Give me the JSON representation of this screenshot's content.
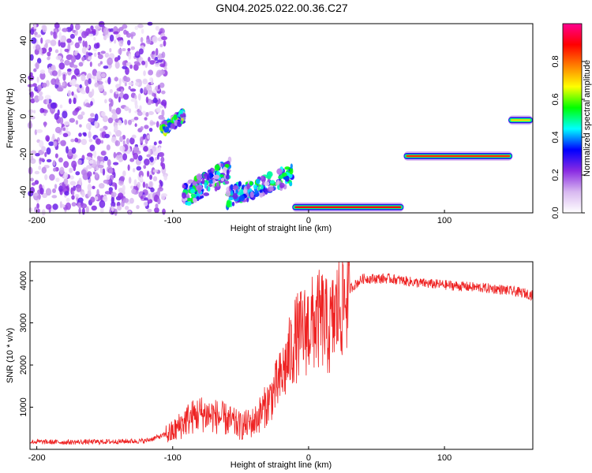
{
  "title": "GN04.2025.022.00.36.C27",
  "chart_data": [
    {
      "type": "heatmap",
      "xlabel": "Height of straight line (km)",
      "ylabel": "Frequency (Hz)",
      "xlim": [
        -205,
        165
      ],
      "ylim": [
        -51,
        49
      ],
      "xticks": [
        -200,
        -100,
        0,
        100
      ],
      "yticks": [
        -40,
        -20,
        0,
        20,
        40
      ],
      "colorbar": {
        "label": "Normalized spectral amplitude",
        "range": [
          0,
          1
        ],
        "ticks": [
          "0.0",
          "0.2",
          "0.4",
          "0.6",
          "0.8"
        ],
        "colors": [
          "#ffffff",
          "#d8b8f0",
          "#8a2be2",
          "#0000ff",
          "#00ffff",
          "#00ff00",
          "#ffff00",
          "#ff7f00",
          "#ff0000",
          "#ff0090"
        ]
      },
      "features": [
        {
          "kind": "diffuse scatter",
          "x_range": [
            -205,
            -105
          ],
          "y_range": [
            -51,
            49
          ],
          "amplitude": 0.1
        },
        {
          "kind": "cluster",
          "x_range": [
            -108,
            -92
          ],
          "y_range": [
            -10,
            2
          ],
          "amplitude": 0.35
        },
        {
          "kind": "cluster",
          "x_range": [
            -92,
            -58
          ],
          "y_range": [
            -48,
            -25
          ],
          "amplitude": 0.3
        },
        {
          "kind": "cluster",
          "x_range": [
            -60,
            -12
          ],
          "y_range": [
            -48,
            -28
          ],
          "amplitude": 0.3
        },
        {
          "kind": "band",
          "x_range": [
            -12,
            70
          ],
          "y": -48,
          "amplitude": 0.7
        },
        {
          "kind": "band",
          "x_range": [
            70,
            150
          ],
          "y": -21,
          "amplitude": 0.65
        },
        {
          "kind": "band",
          "x_range": [
            147,
            165
          ],
          "y": -2,
          "amplitude": 0.5
        }
      ]
    },
    {
      "type": "line",
      "xlabel": "Height of straight line (km)",
      "ylabel": "SNR (10 * v/v)",
      "xlim": [
        -205,
        165
      ],
      "ylim": [
        0,
        4450
      ],
      "xticks": [
        -200,
        -100,
        0,
        100
      ],
      "yticks": [
        1000,
        2000,
        3000,
        4000
      ],
      "color": "#ee2222",
      "series": [
        {
          "x": [
            -205,
            -180,
            -150,
            -120,
            -100,
            -90,
            -80,
            -70,
            -60,
            -50,
            -40,
            -30,
            -20,
            -10,
            0,
            5,
            10,
            15,
            20,
            25,
            30,
            40,
            60,
            80,
            100,
            120,
            140,
            160,
            165
          ],
          "values": [
            180,
            170,
            180,
            200,
            400,
            700,
            850,
            800,
            700,
            550,
            650,
            1100,
            1700,
            2600,
            2900,
            3000,
            3100,
            2800,
            3200,
            3500,
            3800,
            4050,
            4050,
            3950,
            3900,
            3850,
            3800,
            3700,
            3650
          ]
        }
      ]
    }
  ]
}
